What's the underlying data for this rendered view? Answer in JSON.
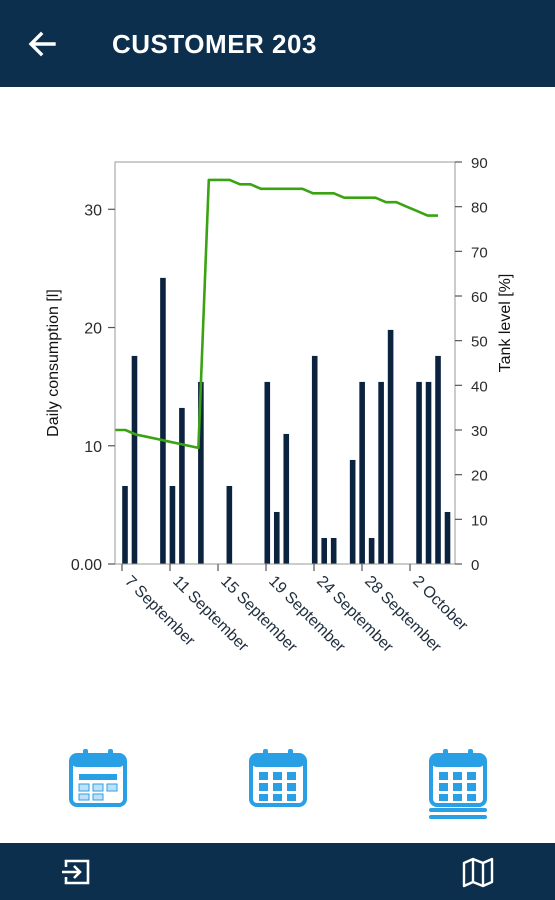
{
  "header": {
    "title": "CUSTOMER 203",
    "back_icon": "arrow-left-icon"
  },
  "chart_data": {
    "type": "bar+line",
    "ylabel_left": "Daily consumption [l]",
    "ylabel_right": "Tank level [%]",
    "yticks_left": [
      "0.00",
      "10",
      "20",
      "30"
    ],
    "ylim_left": [
      0,
      34
    ],
    "yticks_right": [
      "0",
      "10",
      "20",
      "30",
      "40",
      "50",
      "60",
      "70",
      "80",
      "90"
    ],
    "ylim_right": [
      0,
      90
    ],
    "xtick_labels": [
      "7 September",
      "11 September",
      "15 September",
      "19 September",
      "24 September",
      "28 September",
      "2 October"
    ],
    "series": [
      {
        "name": "Daily consumption",
        "kind": "bar",
        "color": "#0c2340",
        "values": [
          6.6,
          17.6,
          0,
          0,
          24.2,
          6.6,
          13.2,
          0,
          15.4,
          0,
          0,
          6.6,
          0,
          0,
          0,
          15.4,
          4.4,
          11,
          0,
          0,
          17.6,
          2.2,
          2.2,
          0,
          8.8,
          15.4,
          2.2,
          15.4,
          19.8,
          0,
          0,
          15.4,
          15.4,
          17.6,
          4.4
        ]
      },
      {
        "name": "Tank level",
        "kind": "line",
        "color": "#3aa312",
        "points": [
          [
            0,
            30
          ],
          [
            1,
            30
          ],
          [
            2,
            29
          ],
          [
            3,
            28.5
          ],
          [
            4,
            28
          ],
          [
            5,
            27.5
          ],
          [
            6,
            27
          ],
          [
            7,
            26.5
          ],
          [
            8,
            26
          ],
          [
            9,
            86
          ],
          [
            10,
            86
          ],
          [
            11,
            86
          ],
          [
            12,
            85
          ],
          [
            13,
            85
          ],
          [
            14,
            84
          ],
          [
            15,
            84
          ],
          [
            16,
            84
          ],
          [
            17,
            84
          ],
          [
            18,
            84
          ],
          [
            19,
            83
          ],
          [
            20,
            83
          ],
          [
            21,
            83
          ],
          [
            22,
            82
          ],
          [
            23,
            82
          ],
          [
            24,
            82
          ],
          [
            25,
            82
          ],
          [
            26,
            81
          ],
          [
            27,
            81
          ],
          [
            28,
            80
          ],
          [
            29,
            79
          ],
          [
            30,
            78
          ],
          [
            31,
            78
          ]
        ]
      }
    ]
  },
  "period_buttons": [
    {
      "icon": "calendar-week-icon"
    },
    {
      "icon": "calendar-month-icon"
    },
    {
      "icon": "calendar-multi-month-icon"
    }
  ],
  "footer": {
    "left_icon": "logout-icon",
    "right_icon": "map-icon"
  }
}
